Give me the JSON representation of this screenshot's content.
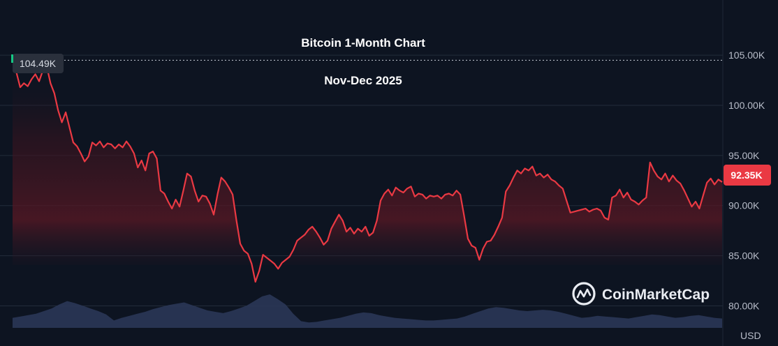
{
  "chart_data": {
    "type": "line",
    "title": "Bitcoin 1-Month Chart",
    "subtitle": "Nov-Dec 2025",
    "currency_label": "USD",
    "y_ticks": [
      "80.00K",
      "85.00K",
      "90.00K",
      "95.00K",
      "100.00K",
      "105.00K"
    ],
    "y_tick_values": [
      80000,
      85000,
      90000,
      95000,
      100000,
      105000
    ],
    "ylim": [
      76000,
      110500
    ],
    "open_label": "104.49K",
    "open_value": 104490,
    "last_label": "92.35K",
    "last_value": 92350,
    "grid": true,
    "series": [
      {
        "values": [
          104490,
          103300,
          101800,
          102200,
          101900,
          102600,
          103100,
          102400,
          103500,
          103900,
          102200,
          101200,
          99500,
          98300,
          99300,
          97800,
          96300,
          95900,
          95200,
          94400,
          94900,
          96300,
          96000,
          96400,
          95800,
          96200,
          96100,
          95700,
          96100,
          95800,
          96400,
          95900,
          95200,
          93800,
          94500,
          93500,
          95200,
          95400,
          94700,
          91500,
          91200,
          90400,
          89700,
          90600,
          89900,
          91500,
          93200,
          92900,
          91500,
          90400,
          91000,
          90900,
          90200,
          89100,
          91100,
          92800,
          92400,
          91800,
          91100,
          88500,
          86200,
          85500,
          85200,
          84200,
          82400,
          83500,
          85100,
          84800,
          84500,
          84200,
          83700,
          84300,
          84600,
          84900,
          85600,
          86500,
          86800,
          87100,
          87600,
          87900,
          87400,
          86800,
          86100,
          86500,
          87700,
          88400,
          89100,
          88500,
          87400,
          87800,
          87200,
          87700,
          87400,
          87900,
          87000,
          87300,
          88500,
          90500,
          91200,
          91600,
          91000,
          91800,
          91500,
          91300,
          91700,
          91900,
          90900,
          91200,
          91100,
          90700,
          91000,
          90900,
          91000,
          90700,
          91100,
          91200,
          91000,
          91500,
          91100,
          89000,
          86700,
          86000,
          85800,
          84600,
          85700,
          86400,
          86500,
          87100,
          87900,
          88800,
          91400,
          92000,
          92800,
          93500,
          93200,
          93700,
          93500,
          93900,
          93000,
          93200,
          92800,
          93100,
          92600,
          92400,
          92000,
          91700,
          90500,
          89300,
          89400,
          89500,
          89600,
          89700,
          89400,
          89600,
          89700,
          89500,
          88800,
          88600,
          90800,
          91000,
          91600,
          90800,
          91300,
          90600,
          90400,
          90100,
          90500,
          90800,
          94300,
          93500,
          92900,
          92600,
          93200,
          92400,
          93000,
          92500,
          92200,
          91500,
          90700,
          89900,
          90400,
          89700,
          91000,
          92300,
          92700,
          92100,
          92600,
          92350
        ]
      }
    ],
    "volume": {
      "ylim": [
        0,
        1
      ],
      "values": [
        0.3,
        0.34,
        0.38,
        0.42,
        0.5,
        0.58,
        0.7,
        0.8,
        0.74,
        0.66,
        0.58,
        0.5,
        0.4,
        0.22,
        0.3,
        0.36,
        0.42,
        0.48,
        0.56,
        0.62,
        0.68,
        0.72,
        0.76,
        0.68,
        0.6,
        0.52,
        0.48,
        0.44,
        0.5,
        0.58,
        0.66,
        0.8,
        0.94,
        1.0,
        0.86,
        0.7,
        0.42,
        0.2,
        0.16,
        0.18,
        0.22,
        0.26,
        0.3,
        0.36,
        0.42,
        0.46,
        0.44,
        0.38,
        0.34,
        0.3,
        0.28,
        0.26,
        0.24,
        0.22,
        0.22,
        0.24,
        0.26,
        0.28,
        0.34,
        0.42,
        0.5,
        0.58,
        0.62,
        0.6,
        0.56,
        0.52,
        0.5,
        0.52,
        0.54,
        0.52,
        0.48,
        0.42,
        0.36,
        0.3,
        0.32,
        0.36,
        0.34,
        0.32,
        0.3,
        0.28,
        0.32,
        0.36,
        0.4,
        0.38,
        0.34,
        0.3,
        0.32,
        0.36,
        0.38,
        0.34,
        0.3,
        0.28
      ]
    },
    "annotations": [
      "CoinMarketCap"
    ]
  }
}
